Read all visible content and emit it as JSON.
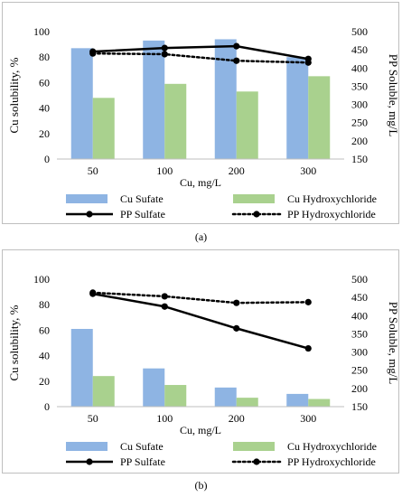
{
  "panels": [
    {
      "label": "(a)",
      "chart_data": {
        "type": "bar",
        "categories": [
          "50",
          "100",
          "200",
          "300"
        ],
        "xlabel": "Cu, mg/L",
        "ylabel": "Cu solubility, %",
        "y2label": "PP Soluble, mg/L",
        "ylim": [
          0,
          100
        ],
        "yticks": [
          0,
          20,
          40,
          60,
          80,
          100
        ],
        "y2lim": [
          150,
          500
        ],
        "y2ticks": [
          150,
          200,
          250,
          300,
          350,
          400,
          450,
          500
        ],
        "legend_position": "bottom",
        "series": [
          {
            "name": "Cu Sufate",
            "kind": "bar",
            "color": "#8eb4e3",
            "values": [
              87,
              93,
              94,
              80
            ]
          },
          {
            "name": "Cu Hydroxychloride",
            "kind": "bar",
            "color": "#a9d18e",
            "values": [
              48,
              59,
              53,
              65
            ]
          },
          {
            "name": "PP Sulfate",
            "kind": "line",
            "style": "solid",
            "axis": "right",
            "color": "#000000",
            "values": [
              445,
              455,
              460,
              425
            ]
          },
          {
            "name": "PP Hydroxychloride",
            "kind": "line",
            "style": "dotted",
            "axis": "right",
            "color": "#000000",
            "values": [
              440,
              438,
              420,
              415
            ]
          }
        ]
      }
    },
    {
      "label": "(b)",
      "chart_data": {
        "type": "bar",
        "categories": [
          "50",
          "100",
          "200",
          "300"
        ],
        "xlabel": "Cu, mg/L",
        "ylabel": "Cu solubility, %",
        "y2label": "PP Soluble, mg/L",
        "ylim": [
          0,
          100
        ],
        "yticks": [
          0,
          20,
          40,
          60,
          80,
          100
        ],
        "y2lim": [
          150,
          500
        ],
        "y2ticks": [
          150,
          200,
          250,
          300,
          350,
          400,
          450,
          500
        ],
        "legend_position": "bottom",
        "series": [
          {
            "name": "Cu Sufate",
            "kind": "bar",
            "color": "#8eb4e3",
            "values": [
              61,
              30,
              15,
              10
            ]
          },
          {
            "name": "Cu Hydroxychloride",
            "kind": "bar",
            "color": "#a9d18e",
            "values": [
              24,
              17,
              7,
              6
            ]
          },
          {
            "name": "PP Sulfate",
            "kind": "line",
            "style": "solid",
            "axis": "right",
            "color": "#000000",
            "values": [
              460,
              425,
              365,
              310
            ]
          },
          {
            "name": "PP Hydroxychloride",
            "kind": "line",
            "style": "dotted",
            "axis": "right",
            "color": "#000000",
            "values": [
              463,
              453,
              435,
              437
            ]
          }
        ]
      }
    }
  ]
}
